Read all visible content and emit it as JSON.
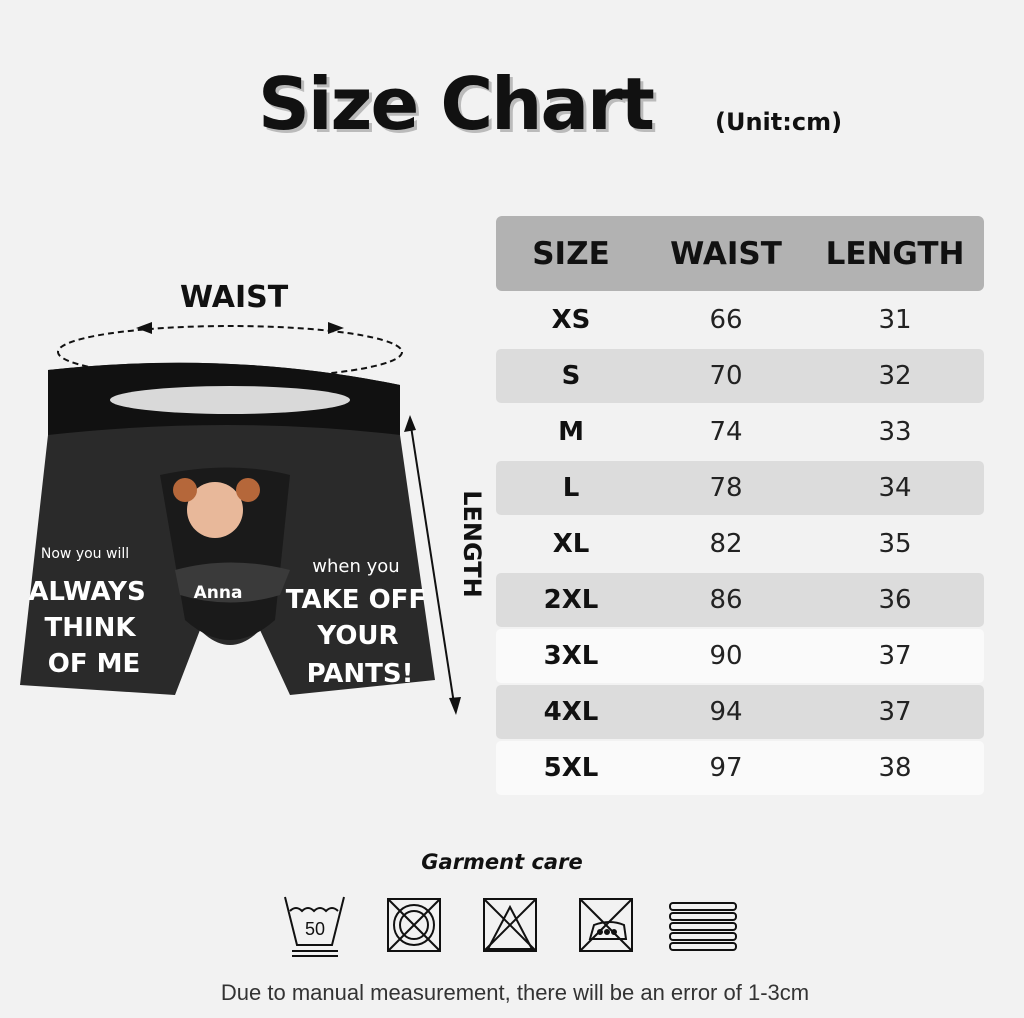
{
  "header": {
    "title": "Size Chart",
    "unit": "(Unit:cm)"
  },
  "illustration": {
    "waist_label": "WAIST",
    "length_label": "LENGTH",
    "left_text": [
      "Now you will",
      "ALWAYS",
      "THINK",
      "OF ME"
    ],
    "right_text": [
      "when you",
      "TAKE OFF",
      "YOUR",
      "PANTS!"
    ],
    "name": "Anna"
  },
  "table": {
    "headers": [
      "SIZE",
      "WAIST",
      "LENGTH"
    ],
    "rows": [
      {
        "size": "XS",
        "waist": "66",
        "length": "31"
      },
      {
        "size": "S",
        "waist": "70",
        "length": "32"
      },
      {
        "size": "M",
        "waist": "74",
        "length": "33"
      },
      {
        "size": "L",
        "waist": "78",
        "length": "34"
      },
      {
        "size": "XL",
        "waist": "82",
        "length": "35"
      },
      {
        "size": "2XL",
        "waist": "86",
        "length": "36"
      },
      {
        "size": "3XL",
        "waist": "90",
        "length": "37"
      },
      {
        "size": "4XL",
        "waist": "94",
        "length": "37"
      },
      {
        "size": "5XL",
        "waist": "97",
        "length": "38"
      }
    ]
  },
  "care": {
    "title": "Garment care",
    "icons": [
      "wash-50-icon",
      "no-dry-clean-icon",
      "no-bleach-icon",
      "no-iron-icon",
      "dry-flat-icon"
    ],
    "wash_temp": "50"
  },
  "note": "Due to manual measurement, there will be an error of 1-3cm"
}
